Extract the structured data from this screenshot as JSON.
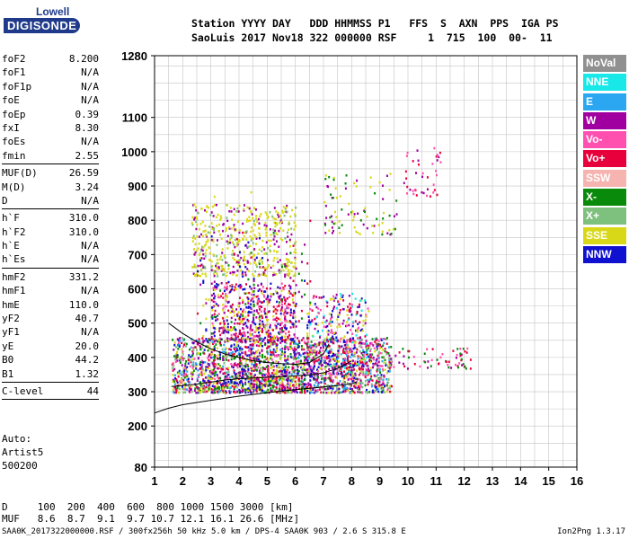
{
  "logo": {
    "line1": "Lowell",
    "line2": "DIGISONDE"
  },
  "header": {
    "line1": "Station YYYY DAY   DDD HHMMSS P1   FFS  S  AXN  PPS  IGA PS",
    "line2": "SaoLuis 2017 Nov18 322 000000 RSF     1  715  100  00-  11"
  },
  "params": {
    "group1": [
      {
        "name": "foF2",
        "value": "8.200"
      },
      {
        "name": "foF1",
        "value": "N/A"
      },
      {
        "name": "foF1p",
        "value": "N/A"
      },
      {
        "name": "foE",
        "value": "N/A"
      },
      {
        "name": "foEp",
        "value": "0.39"
      },
      {
        "name": "fxI",
        "value": "8.30"
      },
      {
        "name": "foEs",
        "value": "N/A"
      },
      {
        "name": "fmin",
        "value": "2.55"
      }
    ],
    "group2": [
      {
        "name": "MUF(D)",
        "value": "26.59"
      },
      {
        "name": "M(D)",
        "value": "3.24"
      },
      {
        "name": "D",
        "value": "N/A"
      }
    ],
    "group3": [
      {
        "name": "h`F",
        "value": "310.0"
      },
      {
        "name": "h`F2",
        "value": "310.0"
      },
      {
        "name": "h`E",
        "value": "N/A"
      },
      {
        "name": "h`Es",
        "value": "N/A"
      }
    ],
    "group4": [
      {
        "name": "hmF2",
        "value": "331.2"
      },
      {
        "name": "hmF1",
        "value": "N/A"
      },
      {
        "name": "hmE",
        "value": "110.0"
      },
      {
        "name": "yF2",
        "value": "40.7"
      },
      {
        "name": "yF1",
        "value": "N/A"
      },
      {
        "name": "yE",
        "value": "20.0"
      },
      {
        "name": "B0",
        "value": "44.2"
      },
      {
        "name": "B1",
        "value": "1.32"
      }
    ],
    "group5": [
      {
        "name": "C-level",
        "value": "44"
      }
    ]
  },
  "autoscale": {
    "line1": "Auto:",
    "line2": "Artist5",
    "line3": "500200"
  },
  "legend": [
    {
      "label": "NoVal",
      "color": "#909090"
    },
    {
      "label": "NNE",
      "color": "#18e8e8"
    },
    {
      "label": "E",
      "color": "#2aa7f0"
    },
    {
      "label": "W",
      "color": "#a000a0"
    },
    {
      "label": "Vo-",
      "color": "#ff50b0"
    },
    {
      "label": "Vo+",
      "color": "#e8003c"
    },
    {
      "label": "SSW",
      "color": "#f6b4b0"
    },
    {
      "label": "X-",
      "color": "#0a8a0a"
    },
    {
      "label": "X+",
      "color": "#7ec07e"
    },
    {
      "label": "SSE",
      "color": "#d8d818"
    },
    {
      "label": "NNW",
      "color": "#1010d0"
    }
  ],
  "muf_table": {
    "d_line": "D     100  200  400  600  800 1000 1500 3000 [km]",
    "muf_line": "MUF   8.6  8.7  9.1  9.7 10.7 12.1 16.1 26.6 [MHz]"
  },
  "footer": {
    "left": "SAA0K_2017322000000.RSF / 300fx256h 50 kHz 5.0 km / DPS-4 SAA0K 903 / 2.6 S 315.8 E",
    "right": "Ion2Png 1.3.17"
  },
  "chart_data": {
    "type": "scatter",
    "xlim": [
      1,
      16
    ],
    "ylim": [
      80,
      1280
    ],
    "x_ticks": [
      1,
      2,
      3,
      4,
      5,
      6,
      7,
      8,
      9,
      10,
      11,
      12,
      13,
      14,
      15,
      16
    ],
    "y_ticks": [
      80,
      200,
      300,
      400,
      500,
      600,
      700,
      800,
      900,
      1000,
      1100,
      1280
    ],
    "grid": true,
    "profile_curve": {
      "x": [
        1.0,
        1.5,
        2.0,
        3.0,
        4.0,
        5.0,
        6.0,
        7.0,
        7.5,
        8.0,
        8.2
      ],
      "y": [
        238,
        252,
        262,
        275,
        287,
        297,
        306,
        314,
        318,
        323,
        330
      ]
    },
    "trace_curves": [
      {
        "x": [
          1.6,
          2.0,
          2.5,
          3.0,
          3.5,
          4.0,
          4.5,
          5.0,
          5.5,
          6.0,
          6.5,
          7.0,
          7.5,
          8.0
        ],
        "y": [
          315,
          318,
          322,
          328,
          334,
          338,
          340,
          342,
          344,
          346,
          349,
          355,
          368,
          390
        ]
      },
      {
        "x": [
          1.5,
          2.0,
          2.5,
          3.0,
          3.5,
          4.0,
          4.5,
          5.0,
          5.5,
          6.0,
          6.5,
          7.0,
          7.2
        ],
        "y": [
          500,
          470,
          445,
          425,
          410,
          400,
          390,
          385,
          382,
          380,
          385,
          410,
          440
        ]
      }
    ],
    "clusters": [
      {
        "name": "F-layer O/X echoes",
        "x_range": [
          1.6,
          9.4
        ],
        "y_range": [
          300,
          460
        ],
        "density": 1900,
        "colors": [
          "#e8003c",
          "#ff50b0",
          "#a000a0",
          "#0a8a0a",
          "#2aa7f0",
          "#d8d818",
          "#1010d0",
          "#7ec07e"
        ]
      },
      {
        "name": "Spread echoes",
        "x_range": [
          3.0,
          6.0
        ],
        "y_range": [
          450,
          620
        ],
        "density": 500,
        "colors": [
          "#a000a0",
          "#1010d0",
          "#e8003c",
          "#ff50b0",
          "#d8d818"
        ]
      },
      {
        "name": "Spread echoes 2",
        "x_range": [
          6.4,
          8.6
        ],
        "y_range": [
          350,
          590
        ],
        "density": 420,
        "colors": [
          "#d8d818",
          "#ff50b0",
          "#a000a0",
          "#e8003c",
          "#18e8e8",
          "#1010d0"
        ]
      },
      {
        "name": "Second hop",
        "x_range": [
          2.3,
          6.0
        ],
        "y_range": [
          640,
          850
        ],
        "density": 520,
        "colors": [
          "#d8d818",
          "#d8d818",
          "#d8d818",
          "#7ec07e",
          "#a000a0"
        ]
      },
      {
        "name": "Upper oblique",
        "x_range": [
          7.0,
          9.6
        ],
        "y_range": [
          760,
          940
        ],
        "density": 90,
        "colors": [
          "#d8d818",
          "#d8d818",
          "#a000a0",
          "#0a8a0a"
        ]
      },
      {
        "name": "High returns",
        "x_range": [
          9.8,
          11.2
        ],
        "y_range": [
          870,
          1030
        ],
        "density": 40,
        "colors": [
          "#a000a0",
          "#e8003c",
          "#ff50b0"
        ]
      },
      {
        "name": "Tail echoes",
        "x_range": [
          9.4,
          12.2
        ],
        "y_range": [
          370,
          430
        ],
        "density": 60,
        "colors": [
          "#e8003c",
          "#ff50b0",
          "#a000a0",
          "#0a8a0a"
        ]
      },
      {
        "name": "Vertical streaks",
        "x_range": [
          2.5,
          6.5
        ],
        "y_range": [
          300,
          900
        ],
        "density": 600,
        "colors": [
          "#a000a0",
          "#1010d0",
          "#e8003c",
          "#0a8a0a",
          "#d8d818"
        ]
      }
    ]
  }
}
